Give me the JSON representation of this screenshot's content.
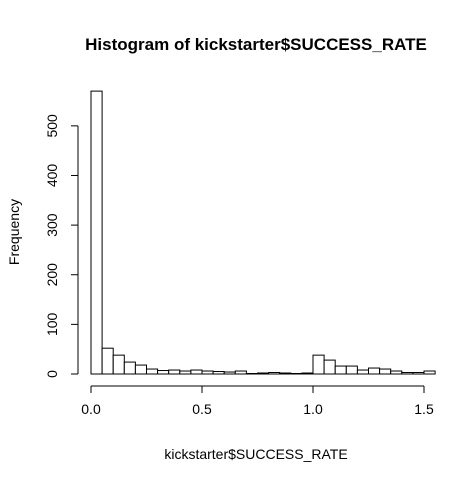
{
  "chart_data": {
    "type": "bar",
    "title": "Histogram of kickstarter$SUCCESS_RATE",
    "xlabel": "kickstarter$SUCCESS_RATE",
    "ylabel": "Frequency",
    "xlim": [
      0,
      1.55
    ],
    "ylim": [
      0,
      580
    ],
    "bin_width": 0.05,
    "bin_starts": [
      0.0,
      0.05,
      0.1,
      0.15,
      0.2,
      0.25,
      0.3,
      0.35,
      0.4,
      0.45,
      0.5,
      0.55,
      0.6,
      0.65,
      0.7,
      0.75,
      0.8,
      0.85,
      0.9,
      0.95,
      1.0,
      1.05,
      1.1,
      1.15,
      1.2,
      1.25,
      1.3,
      1.35,
      1.4,
      1.45,
      1.5
    ],
    "values": [
      570,
      52,
      38,
      24,
      18,
      10,
      7,
      8,
      6,
      8,
      6,
      5,
      4,
      6,
      1,
      2,
      3,
      2,
      1,
      2,
      38,
      28,
      16,
      16,
      8,
      12,
      10,
      6,
      3,
      3,
      6
    ],
    "x_ticks": [
      0.0,
      0.5,
      1.0,
      1.5
    ],
    "x_tick_labels": [
      "0.0",
      "0.5",
      "1.0",
      "1.5"
    ],
    "y_ticks": [
      0,
      100,
      200,
      300,
      400,
      500
    ],
    "y_tick_labels": [
      "0",
      "100",
      "200",
      "300",
      "400",
      "500"
    ],
    "grid": false,
    "legend": "none",
    "colors": {
      "bar_fill": "#ffffff",
      "bar_stroke": "#000000"
    }
  }
}
